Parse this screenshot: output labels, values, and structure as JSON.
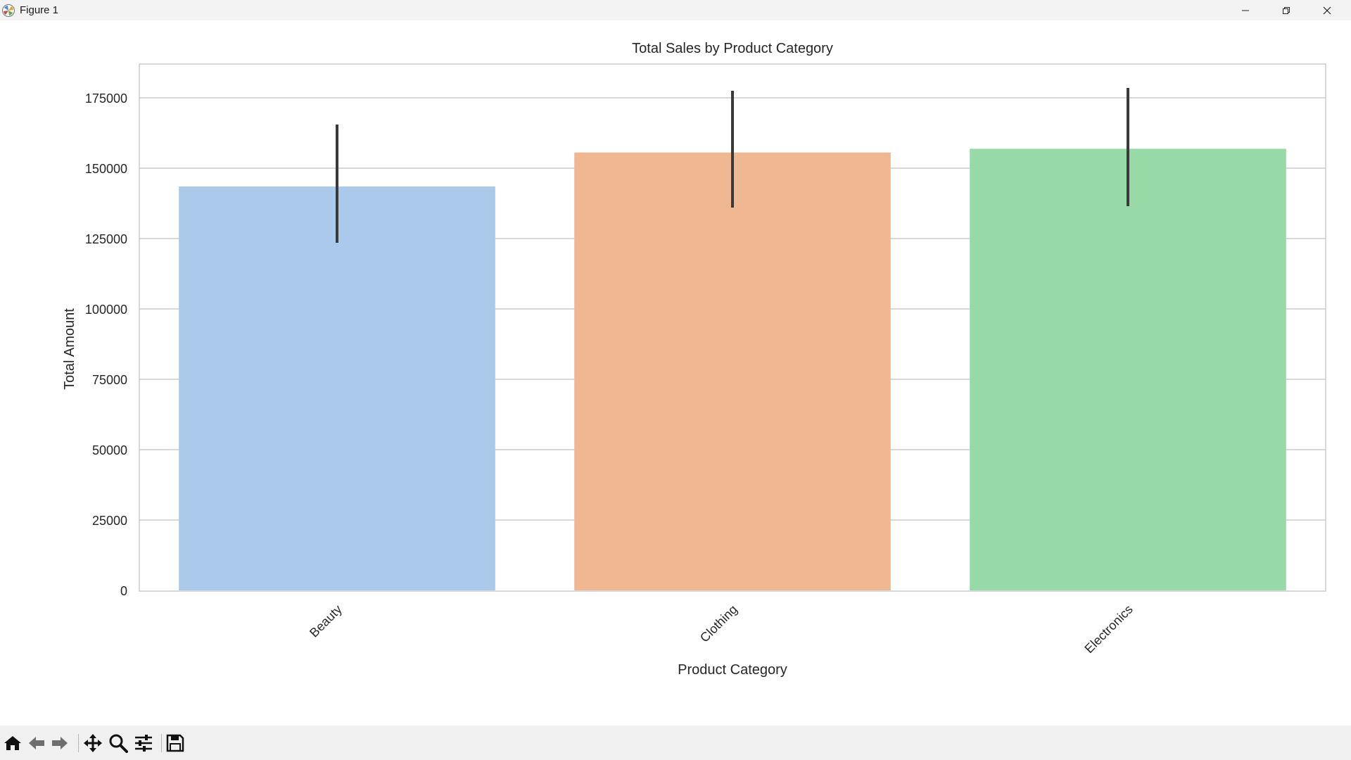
{
  "window": {
    "title": "Figure 1"
  },
  "toolbar": {
    "buttons": [
      "home-icon",
      "back-icon",
      "forward-icon",
      "pan-icon",
      "zoom-icon",
      "configure-subplots-icon",
      "save-icon"
    ]
  },
  "colors": {
    "Beauty": "#abc9ea",
    "Clothing": "#efb792",
    "Electronics": "#98daa7",
    "errorbar": "#3a3a3a",
    "grid": "#cccccc"
  },
  "chart_data": {
    "type": "bar",
    "title": "Total Sales by Product Category",
    "xlabel": "Product Category",
    "ylabel": "Total Amount",
    "categories": [
      "Beauty",
      "Clothing",
      "Electronics"
    ],
    "values": [
      143515,
      155580,
      156905
    ],
    "error_low": [
      123500,
      136000,
      136500
    ],
    "error_high": [
      165500,
      177500,
      178500
    ],
    "ylim": [
      0,
      187000
    ],
    "yticks": [
      0,
      25000,
      50000,
      75000,
      100000,
      125000,
      150000,
      175000
    ],
    "ytick_labels": [
      "0",
      "25000",
      "50000",
      "75000",
      "100000",
      "125000",
      "150000",
      "175000"
    ],
    "grid": "horizontal"
  }
}
